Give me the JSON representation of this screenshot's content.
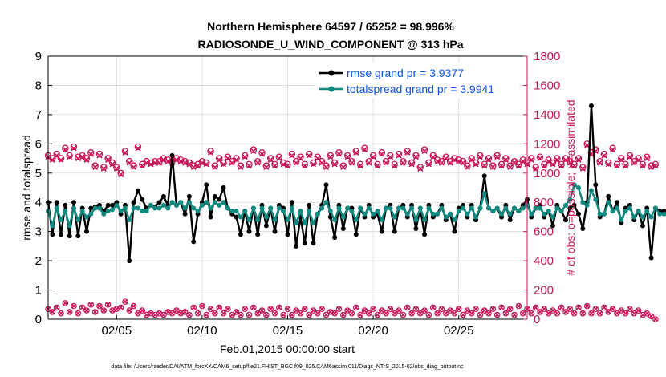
{
  "figure": {
    "title_line1": "Northern Hemisphere 64597 / 65252 = 98.996%",
    "title_line2": "RADIOSONDE_U_WIND_COMPONENT @ 313 hPa",
    "footer": "data file: /Users/raeder/DAI/ATM_forcXX/CAM6_setup/f.e21.FHIST_BGC.f09_025.CAM6assim.011/Diags_NTrS_2015-02/obs_diag_output.nc"
  },
  "chart_data": {
    "type": "line",
    "title": "Northern Hemisphere 64597 / 65252 = 98.996%",
    "subtitle": "RADIOSONDE_U_WIND_COMPONENT @ 313 hPa",
    "xlabel": "Feb.01,2015 00:00:00 start",
    "ylabel": "rmse and totalspread",
    "y2label": "# of obs: o=possible; ×=assimilated",
    "xlim": [
      1,
      29
    ],
    "ylim": [
      0,
      9
    ],
    "y2lim": [
      0,
      1800
    ],
    "x_ticks": [
      5,
      10,
      15,
      20,
      25
    ],
    "x_tick_labels": [
      "02/05",
      "02/10",
      "02/15",
      "02/20",
      "02/25"
    ],
    "y_ticks": [
      0,
      1,
      2,
      3,
      4,
      5,
      6,
      7,
      8,
      9
    ],
    "y_tick_labels": [
      "0",
      "1",
      "2",
      "3",
      "4",
      "5",
      "6",
      "7",
      "8",
      "9"
    ],
    "y2_ticks": [
      0,
      200,
      400,
      600,
      800,
      1000,
      1200,
      1400,
      1600,
      1800
    ],
    "y2_tick_labels": [
      "0",
      "200",
      "400",
      "600",
      "800",
      "1000",
      "1200",
      "1400",
      "1600",
      "1800"
    ],
    "x_start": 1.0,
    "x_step": 0.25,
    "legend": {
      "position": "top-right",
      "rmse_label": "rmse grand pr = 3.9377",
      "spread_label": "totalspread grand pr = 3.9941"
    },
    "colors": {
      "rmse": "#000000",
      "spread": "#0f8a80",
      "obs": "#c8175a",
      "legend_text": "#0b55e6",
      "axis": "#000000"
    },
    "series": [
      {
        "name": "rmse",
        "values": [
          4.0,
          2.9,
          4.0,
          2.9,
          3.9,
          2.85,
          4.0,
          2.85,
          3.8,
          3.0,
          3.8,
          3.85,
          3.9,
          3.7,
          3.9,
          3.9,
          4.0,
          3.6,
          3.9,
          2.0,
          4.0,
          4.4,
          4.1,
          3.8,
          3.9,
          3.85,
          4.0,
          4.2,
          3.9,
          5.6,
          3.9,
          4.0,
          3.6,
          4.2,
          2.65,
          3.6,
          4.0,
          4.6,
          3.5,
          4.2,
          4.1,
          4.5,
          3.8,
          3.6,
          3.5,
          2.9,
          3.7,
          3.0,
          3.8,
          2.9,
          3.9,
          3.2,
          3.8,
          3.0,
          3.9,
          3.8,
          2.9,
          4.0,
          2.5,
          3.5,
          2.6,
          3.9,
          2.6,
          3.6,
          3.9,
          4.6,
          3.5,
          2.8,
          3.9,
          3.1,
          3.8,
          3.8,
          2.9,
          3.8,
          3.5,
          3.9,
          3.5,
          3.6,
          3.0,
          3.8,
          3.9,
          3.0,
          3.8,
          3.9,
          3.5,
          3.9,
          3.1,
          3.8,
          2.9,
          3.9,
          3.5,
          3.6,
          3.9,
          3.4,
          3.6,
          3.0,
          3.8,
          3.9,
          3.5,
          3.9,
          3.4,
          3.8,
          4.9,
          3.8,
          3.7,
          3.8,
          3.5,
          3.9,
          3.4,
          3.8,
          3.7,
          3.9,
          4.1,
          3.5,
          3.8,
          3.9,
          3.5,
          3.7,
          3.2,
          3.9,
          3.7,
          3.4,
          3.8,
          3.9,
          3.6,
          3.1,
          4.0,
          7.3,
          4.6,
          3.5,
          3.6,
          4.2,
          3.7,
          4.0,
          3.3,
          3.8,
          3.9,
          3.4,
          3.7,
          3.2,
          3.8,
          2.1,
          3.8,
          3.7,
          3.7
        ],
        "markers": "filled circles"
      },
      {
        "name": "totalspread",
        "values": [
          3.7,
          3.2,
          3.8,
          3.4,
          3.7,
          3.2,
          3.8,
          3.4,
          3.7,
          3.5,
          3.6,
          3.8,
          3.8,
          3.6,
          3.7,
          3.75,
          3.9,
          3.7,
          3.8,
          3.4,
          3.8,
          3.8,
          3.7,
          3.7,
          3.9,
          3.8,
          3.8,
          3.9,
          3.8,
          4.0,
          3.9,
          4.0,
          3.8,
          4.0,
          3.8,
          3.7,
          3.9,
          4.0,
          3.8,
          4.0,
          3.9,
          4.0,
          3.8,
          3.7,
          3.7,
          3.5,
          3.7,
          3.4,
          3.8,
          3.4,
          3.8,
          3.5,
          3.8,
          3.4,
          3.8,
          3.7,
          3.4,
          3.8,
          3.3,
          3.7,
          3.3,
          3.7,
          3.3,
          3.6,
          3.8,
          4.0,
          3.7,
          3.4,
          3.8,
          3.5,
          3.8,
          3.7,
          3.4,
          3.8,
          3.6,
          3.8,
          3.6,
          3.7,
          3.4,
          3.8,
          3.8,
          3.5,
          3.8,
          3.8,
          3.6,
          3.8,
          3.4,
          3.8,
          3.4,
          3.8,
          3.6,
          3.6,
          3.8,
          3.5,
          3.6,
          3.4,
          3.7,
          3.8,
          3.6,
          3.8,
          3.5,
          3.8,
          4.3,
          3.8,
          3.7,
          3.8,
          3.6,
          3.8,
          3.6,
          3.8,
          3.7,
          3.8,
          3.9,
          3.6,
          3.8,
          3.8,
          3.6,
          3.7,
          3.5,
          3.8,
          3.7,
          3.9,
          4.1,
          4.6,
          4.5,
          4.0,
          3.9,
          4.4,
          4.1,
          3.6,
          3.6,
          4.0,
          3.7,
          3.8,
          3.4,
          3.7,
          3.8,
          3.5,
          3.7,
          3.5,
          3.7,
          3.5,
          3.8,
          3.6,
          3.6
        ],
        "markers": "filled circles"
      },
      {
        "name": "possible",
        "axis": "right",
        "values": [
          1120,
          1100,
          1130,
          1100,
          1170,
          1120,
          1180,
          1110,
          1120,
          1100,
          1140,
          1050,
          1130,
          1040,
          1100,
          1070,
          1040,
          1000,
          1150,
          1080,
          1050,
          1180,
          1060,
          1080,
          1070,
          1080,
          1080,
          1100,
          1090,
          1080,
          1100,
          1090,
          1080,
          1070,
          1050,
          1060,
          1080,
          1070,
          1150,
          1050,
          1100,
          1070,
          1110,
          1080,
          1100,
          1050,
          1120,
          1060,
          1160,
          1080,
          1140,
          1050,
          1100,
          1060,
          1110,
          1070,
          1060,
          1130,
          1080,
          1110,
          1060,
          1130,
          1070,
          1110,
          1080,
          1050,
          1120,
          1070,
          1140,
          1050,
          1120,
          1080,
          1150,
          1060,
          1170,
          1080,
          1120,
          1060,
          1140,
          1080,
          1120,
          1060,
          1130,
          1080,
          1150,
          1070,
          1120,
          1040,
          1160,
          1070,
          1120,
          1090,
          1080,
          1110,
          1080,
          1100,
          1090,
          1080,
          1050,
          1100,
          1070,
          1120,
          1060,
          1100,
          1050,
          1120,
          1060,
          1100,
          1050,
          1080,
          1060,
          1090,
          1070,
          1100,
          1040,
          1110,
          1060,
          1090,
          1070,
          1100,
          1060,
          1100,
          1080,
          1060,
          1100,
          1040,
          1200,
          1140,
          1160,
          1080,
          1130,
          1070,
          1170,
          1060,
          1100,
          1060,
          1120,
          1080,
          1100,
          1060,
          1110,
          1050,
          1060
        ],
        "markers": "open circles"
      },
      {
        "name": "assimilated",
        "axis": "right",
        "values": [
          1110,
          1090,
          1120,
          1090,
          1160,
          1110,
          1170,
          1100,
          1110,
          1090,
          1130,
          1040,
          1120,
          1030,
          1090,
          1060,
          1030,
          990,
          1140,
          1070,
          1040,
          1170,
          1050,
          1070,
          1060,
          1070,
          1070,
          1090,
          1080,
          1070,
          1090,
          1080,
          1070,
          1060,
          1040,
          1050,
          1070,
          1060,
          1140,
          1040,
          1090,
          1060,
          1100,
          1070,
          1090,
          1040,
          1110,
          1050,
          1150,
          1070,
          1130,
          1040,
          1090,
          1050,
          1100,
          1060,
          1050,
          1120,
          1070,
          1100,
          1050,
          1120,
          1060,
          1100,
          1070,
          1040,
          1110,
          1060,
          1130,
          1040,
          1110,
          1070,
          1140,
          1050,
          1160,
          1070,
          1110,
          1050,
          1130,
          1070,
          1110,
          1050,
          1120,
          1070,
          1140,
          1060,
          1110,
          1030,
          1150,
          1060,
          1110,
          1080,
          1070,
          1100,
          1070,
          1090,
          1080,
          1070,
          1040,
          1090,
          1060,
          1110,
          1050,
          1090,
          1040,
          1110,
          1050,
          1090,
          1040,
          1070,
          1050,
          1080,
          1060,
          1090,
          1030,
          1100,
          1050,
          1080,
          1060,
          1090,
          1050,
          1090,
          1070,
          1050,
          1090,
          1030,
          1190,
          1130,
          1150,
          1070,
          1120,
          1060,
          1160,
          1050,
          1090,
          1050,
          1110,
          1070,
          1090,
          1050,
          1100,
          1040,
          1050
        ],
        "markers": "x"
      },
      {
        "name": "rejected_possible_low",
        "axis": "right",
        "values": [
          70,
          50,
          80,
          40,
          110,
          50,
          90,
          40,
          80,
          60,
          100,
          50,
          90,
          60,
          100,
          60,
          70,
          80,
          120,
          60,
          90,
          40,
          60,
          30,
          40,
          30,
          40,
          30,
          50,
          40,
          60,
          40,
          50,
          30,
          80,
          40,
          90,
          30,
          70,
          40,
          80,
          40,
          70,
          30,
          50,
          30,
          70,
          30,
          80,
          40,
          60,
          30,
          70,
          40,
          80,
          30,
          70,
          30,
          60,
          40,
          70,
          30,
          60,
          40,
          70,
          30,
          50,
          40,
          70,
          30,
          60,
          40,
          80,
          30,
          60,
          40,
          70,
          30,
          60,
          40,
          70,
          40,
          60,
          30,
          80,
          40,
          70,
          40,
          60,
          30,
          80,
          40,
          70,
          40,
          60,
          40,
          70,
          30,
          60,
          40,
          70,
          30,
          60,
          40,
          70,
          30,
          80,
          40,
          70,
          30,
          90,
          40,
          70,
          40,
          80,
          50,
          70,
          40,
          60,
          40,
          80,
          50,
          70,
          40,
          80,
          40,
          90,
          40,
          70,
          40,
          80,
          50,
          70,
          40,
          60,
          40,
          70,
          40,
          60,
          30,
          40,
          20,
          0
        ],
        "markers": "x"
      }
    ]
  }
}
